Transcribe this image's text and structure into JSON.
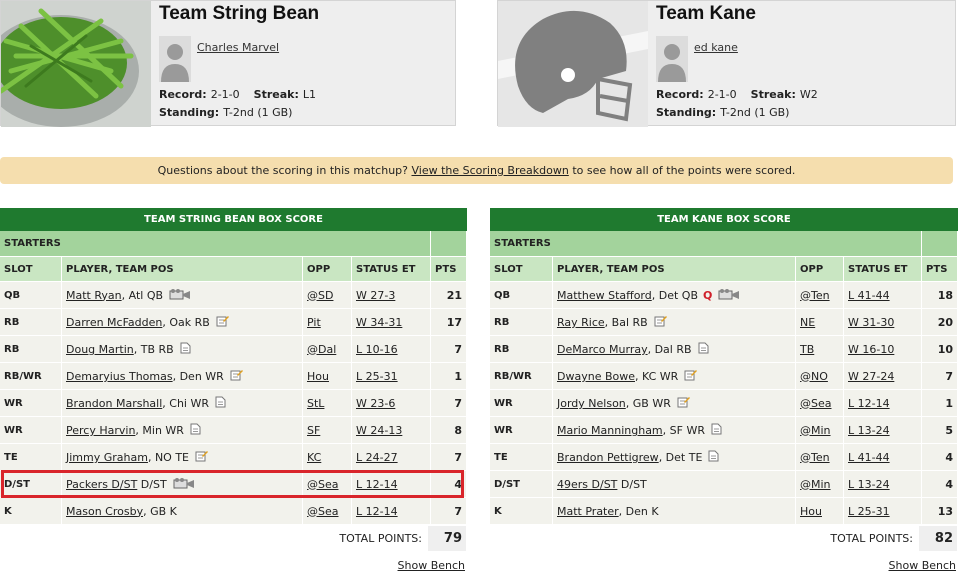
{
  "teams": [
    {
      "name": "Team String Bean",
      "owner": "Charles Marvel",
      "record_label": "Record:",
      "record": "2-1-0",
      "streak_label": "Streak:",
      "streak": "L1",
      "standing_label": "Standing:",
      "standing": "T-2nd (1 GB)"
    },
    {
      "name": "Team Kane",
      "owner": "ed kane",
      "record_label": "Record:",
      "record": "2-1-0",
      "streak_label": "Streak:",
      "streak": "W2",
      "standing_label": "Standing:",
      "standing": "T-2nd (1 GB)"
    }
  ],
  "notice": {
    "text_before": "Questions about the scoring in this matchup?",
    "link": "View the Scoring Breakdown",
    "text_after": "to see how all of the points were scored."
  },
  "box_scores": [
    {
      "title": "TEAM STRING BEAN BOX SCORE",
      "section": "STARTERS",
      "columns": [
        "SLOT",
        "PLAYER, TEAM POS",
        "OPP",
        "STATUS ET",
        "PTS"
      ],
      "rows": [
        {
          "slot": "QB",
          "player": "Matt Ryan",
          "team_pos": ", Atl QB",
          "opp": "@SD",
          "status": "W 27-3",
          "pts": 21
        },
        {
          "slot": "RB",
          "player": "Darren McFadden",
          "team_pos": ", Oak RB",
          "opp": "Pit",
          "status": "W 34-31",
          "pts": 17
        },
        {
          "slot": "RB",
          "player": "Doug Martin",
          "team_pos": ", TB RB",
          "opp": "@Dal",
          "status": "L 10-16",
          "pts": 7
        },
        {
          "slot": "RB/WR",
          "player": "Demaryius Thomas",
          "team_pos": ", Den WR",
          "opp": "Hou",
          "status": "L 25-31",
          "pts": 1
        },
        {
          "slot": "WR",
          "player": "Brandon Marshall",
          "team_pos": ", Chi WR",
          "opp": "StL",
          "status": "W 23-6",
          "pts": 7
        },
        {
          "slot": "WR",
          "player": "Percy Harvin",
          "team_pos": ", Min WR",
          "opp": "SF",
          "status": "W 24-13",
          "pts": 8
        },
        {
          "slot": "TE",
          "player": "Jimmy Graham",
          "team_pos": ", NO TE",
          "opp": "KC",
          "status": "L 24-27",
          "pts": 7
        },
        {
          "slot": "D/ST",
          "player": "Packers D/ST",
          "team_pos": " D/ST",
          "opp": "@Sea",
          "status": "L 12-14",
          "pts": 4
        },
        {
          "slot": "K",
          "player": "Mason Crosby",
          "team_pos": ", GB K",
          "opp": "@Sea",
          "status": "L 12-14",
          "pts": 7
        }
      ],
      "total_label": "TOTAL POINTS:",
      "total": 79,
      "bench_link": "Show Bench"
    },
    {
      "title": "TEAM KANE BOX SCORE",
      "section": "STARTERS",
      "columns": [
        "SLOT",
        "PLAYER, TEAM POS",
        "OPP",
        "STATUS ET",
        "PTS"
      ],
      "rows": [
        {
          "slot": "QB",
          "player": "Matthew Stafford",
          "team_pos": ", Det QB",
          "flag": "Q",
          "opp": "@Ten",
          "status": "L 41-44",
          "pts": 18
        },
        {
          "slot": "RB",
          "player": "Ray Rice",
          "team_pos": ", Bal RB",
          "opp": "NE",
          "status": "W 31-30",
          "pts": 20
        },
        {
          "slot": "RB",
          "player": "DeMarco Murray",
          "team_pos": ", Dal RB",
          "opp": "TB",
          "status": "W 16-10",
          "pts": 10
        },
        {
          "slot": "RB/WR",
          "player": "Dwayne Bowe",
          "team_pos": ", KC WR",
          "opp": "@NO",
          "status": "W 27-24",
          "pts": 7
        },
        {
          "slot": "WR",
          "player": "Jordy Nelson",
          "team_pos": ", GB WR",
          "opp": "@Sea",
          "status": "L 12-14",
          "pts": 1
        },
        {
          "slot": "WR",
          "player": "Mario Manningham",
          "team_pos": ", SF WR",
          "opp": "@Min",
          "status": "L 13-24",
          "pts": 5
        },
        {
          "slot": "TE",
          "player": "Brandon Pettigrew",
          "team_pos": ", Det TE",
          "opp": "@Ten",
          "status": "L 41-44",
          "pts": 4
        },
        {
          "slot": "D/ST",
          "player": "49ers D/ST",
          "team_pos": " D/ST",
          "opp": "@Min",
          "status": "L 13-24",
          "pts": 4
        },
        {
          "slot": "K",
          "player": "Matt Prater",
          "team_pos": ", Den K",
          "opp": "Hou",
          "status": "L 25-31",
          "pts": 13
        }
      ],
      "total_label": "TOTAL POINTS:",
      "total": 82,
      "bench_link": "Show Bench"
    }
  ]
}
